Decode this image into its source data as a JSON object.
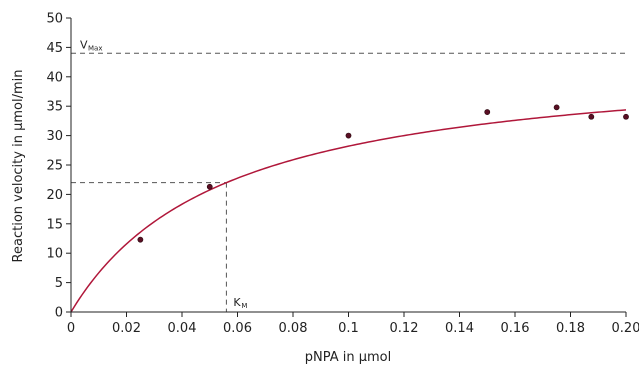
{
  "chart_data": {
    "type": "scatter",
    "title": "",
    "xlabel": "pNPA in μmol",
    "ylabel": "Reaction velocity in μmol/min",
    "xlim": [
      0,
      0.2
    ],
    "ylim": [
      0,
      50
    ],
    "xticks": [
      "0",
      "0.02",
      "0.04",
      "0.06",
      "0.08",
      "0.1",
      "0.12",
      "0.14",
      "0.16",
      "0.18",
      "0.20"
    ],
    "xtick_values": [
      0,
      0.02,
      0.04,
      0.06,
      0.08,
      0.1,
      0.12,
      0.14,
      0.16,
      0.18,
      0.2
    ],
    "yticks": [
      "0",
      "5",
      "10",
      "15",
      "20",
      "25",
      "30",
      "35",
      "40",
      "45",
      "50"
    ],
    "ytick_values": [
      0,
      5,
      10,
      15,
      20,
      25,
      30,
      35,
      40,
      45,
      50
    ],
    "grid": false,
    "points": {
      "x": [
        0.025,
        0.05,
        0.1,
        0.15,
        0.175,
        0.1875,
        0.2
      ],
      "y": [
        12.3,
        21.3,
        30.0,
        34.0,
        34.8,
        33.2,
        33.2
      ]
    },
    "fit_curve": {
      "model": "michaelis-menten",
      "vmax": 44,
      "km": 0.056,
      "color": "#b0173a"
    },
    "vmax_line": {
      "value": 44,
      "label": "V",
      "label_sub": "Max"
    },
    "km_line": {
      "x": 0.056,
      "y": 22,
      "label": "K",
      "label_sub": "M"
    },
    "colors": {
      "axis": "#222222",
      "curve": "#b0173a",
      "point_fill": "#5a0f24",
      "point_stroke": "#2a0a10",
      "dashed": "#555555"
    }
  }
}
